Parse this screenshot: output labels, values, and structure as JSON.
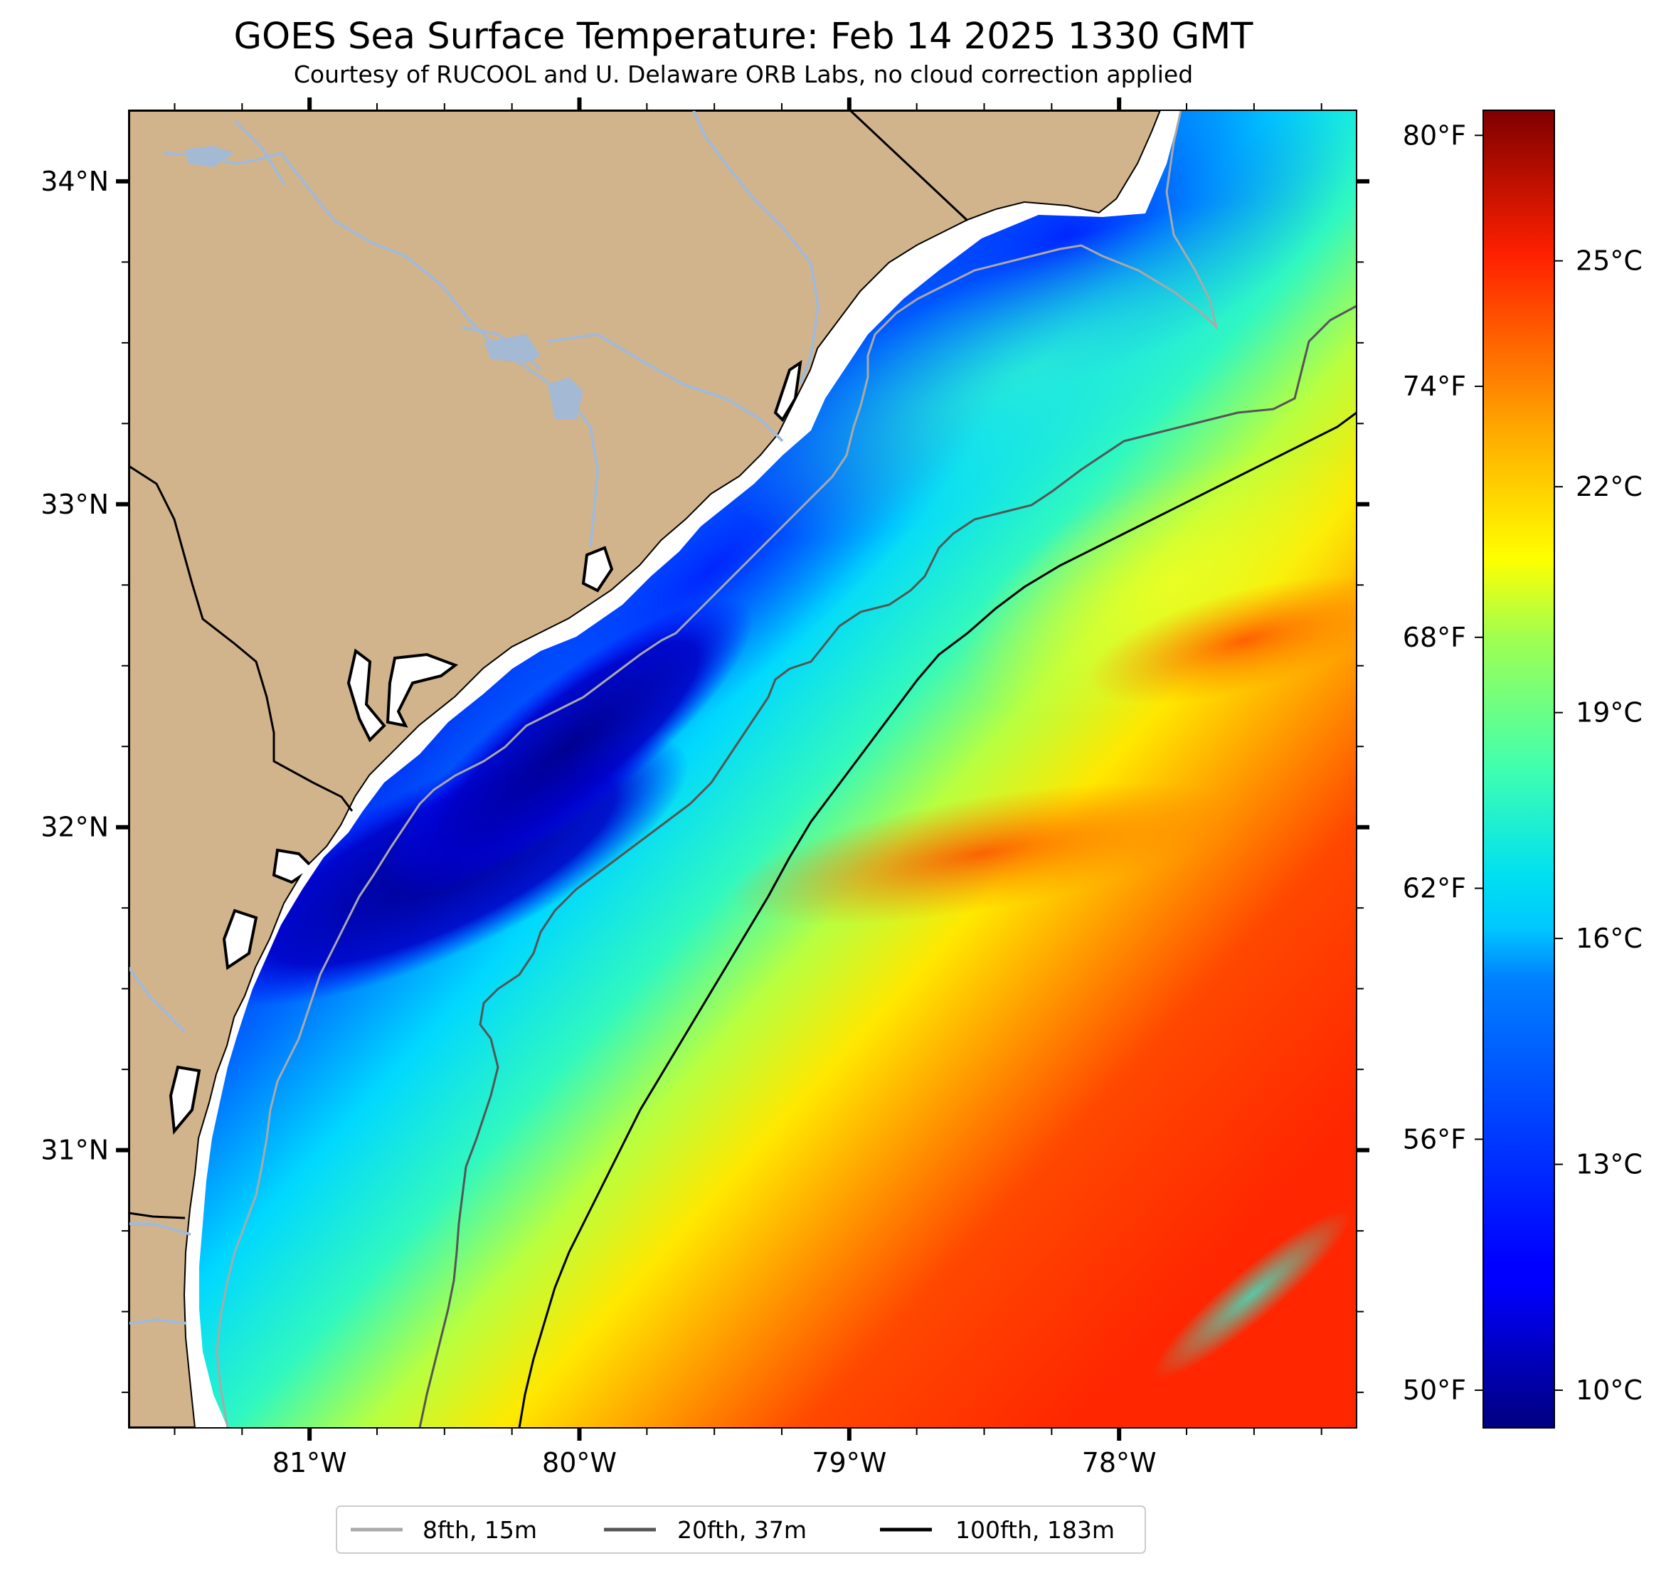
{
  "title": "GOES Sea Surface Temperature: Feb 14 2025 1330 GMT",
  "subtitle": "Courtesy of RUCOOL and U. Delaware ORB Labs, no cloud correction applied",
  "map": {
    "extent": {
      "lon_min": -81.67,
      "lon_max": -77.12,
      "lat_min": 30.14,
      "lat_max": 34.22
    },
    "lon_ticks": [
      {
        "value": -81,
        "label": "81°W"
      },
      {
        "value": -80,
        "label": "80°W"
      },
      {
        "value": -79,
        "label": "79°W"
      },
      {
        "value": -78,
        "label": "78°W"
      }
    ],
    "lat_ticks": [
      {
        "value": 34,
        "label": "34°N"
      },
      {
        "value": 33,
        "label": "33°N"
      },
      {
        "value": 32,
        "label": "32°N"
      },
      {
        "value": 31,
        "label": "31°N"
      }
    ],
    "land_color": "#d2b48c",
    "river_color": "#a3b9d4",
    "coast_color": "#000000"
  },
  "colorbar": {
    "celsius_min": 9.5,
    "celsius_max": 27,
    "celsius_ticks": [
      {
        "value": 25,
        "label": "25°C"
      },
      {
        "value": 22,
        "label": "22°C"
      },
      {
        "value": 19,
        "label": "19°C"
      },
      {
        "value": 16,
        "label": "16°C"
      },
      {
        "value": 13,
        "label": "13°C"
      },
      {
        "value": 10,
        "label": "10°C"
      }
    ],
    "fahrenheit_ticks": [
      {
        "value": 80,
        "label": "80°F"
      },
      {
        "value": 74,
        "label": "74°F"
      },
      {
        "value": 68,
        "label": "68°F"
      },
      {
        "value": 62,
        "label": "62°F"
      },
      {
        "value": 56,
        "label": "56°F"
      },
      {
        "value": 50,
        "label": "50°F"
      }
    ],
    "colormap": "jet"
  },
  "legend": [
    {
      "label": "8fth, 15m",
      "color": "#a9a9a9"
    },
    {
      "label": "20fth, 37m",
      "color": "#555555"
    },
    {
      "label": "100fth, 183m",
      "color": "#000000"
    }
  ]
}
